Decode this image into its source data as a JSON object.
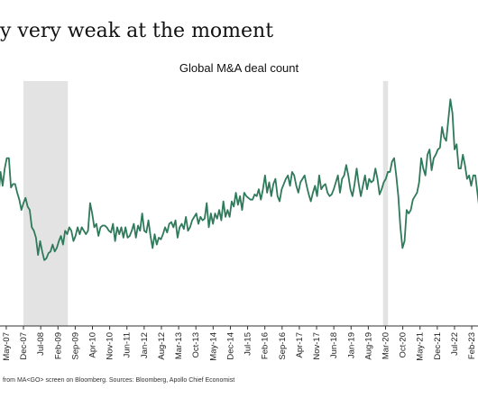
{
  "headline": "y very weak at the moment",
  "footnote": "from MA<GO> screen on Bloomberg. Sources: Bloomberg, Apollo Chief Economist",
  "chart_data": {
    "type": "line",
    "title": "Global M&A deal count",
    "xlabel": "",
    "ylabel": "",
    "line_color": "#2f7a5b",
    "recession_color": "#e3e3e3",
    "tick_labels": [
      "May-07",
      "Dec-07",
      "Jul-08",
      "Feb-09",
      "Sep-09",
      "Apr-10",
      "Nov-10",
      "Jun-11",
      "Jan-12",
      "Aug-12",
      "Mar-13",
      "Oct-13",
      "May-14",
      "Dec-14",
      "Jul-15",
      "Feb-16",
      "Sep-16",
      "Apr-17",
      "Nov-17",
      "Jun-18",
      "Jan-19",
      "Aug-19",
      "Mar-20",
      "Oct-20",
      "May-21",
      "Dec-21",
      "Jul-22",
      "Feb-23"
    ],
    "recessions": [
      {
        "start": "Dec-07",
        "end": "Jun-09"
      },
      {
        "start": "Feb-20",
        "end": "Apr-20"
      }
    ],
    "x_start": "Jan-07",
    "x_end": "Jun-23",
    "y_range": [
      0,
      100
    ],
    "series": [
      {
        "values": [
          55,
          48,
          62,
          54,
          64,
          70,
          70,
          53,
          55,
          55,
          50,
          46,
          40,
          44,
          47,
          42,
          40,
          30,
          28,
          24,
          14,
          22,
          16,
          11,
          12,
          15,
          16,
          20,
          16,
          18,
          22,
          25,
          20,
          28,
          26,
          30,
          28,
          22,
          25,
          30,
          26,
          30,
          28,
          26,
          28,
          44,
          38,
          30,
          32,
          25,
          30,
          31,
          31,
          30,
          28,
          27,
          32,
          22,
          30,
          26,
          30,
          24,
          30,
          24,
          25,
          28,
          32,
          24,
          31,
          28,
          38,
          28,
          27,
          34,
          25,
          18,
          26,
          20,
          24,
          23,
          26,
          30,
          27,
          32,
          33,
          30,
          34,
          24,
          30,
          32,
          29,
          36,
          28,
          30,
          34,
          36,
          38,
          32,
          36,
          34,
          35,
          44,
          30,
          38,
          32,
          38,
          35,
          40,
          34,
          45,
          36,
          40,
          36,
          45,
          42,
          50,
          43,
          48,
          40,
          50,
          48,
          47,
          46,
          46,
          49,
          48,
          52,
          46,
          52,
          60,
          50,
          56,
          48,
          55,
          58,
          48,
          45,
          52,
          55,
          58,
          60,
          54,
          62,
          60,
          54,
          50,
          56,
          58,
          60,
          54,
          49,
          45,
          50,
          54,
          48,
          60,
          52,
          54,
          55,
          50,
          48,
          49,
          52,
          56,
          60,
          50,
          58,
          60,
          66,
          60,
          52,
          48,
          55,
          64,
          55,
          48,
          54,
          60,
          52,
          58,
          56,
          57,
          64,
          58,
          49,
          52,
          56,
          58,
          62,
          62,
          68,
          70,
          60,
          48,
          30,
          18,
          22,
          40,
          38,
          40,
          46,
          48,
          50,
          56,
          70,
          64,
          60,
          72,
          75,
          63,
          70,
          72,
          75,
          76,
          88,
          82,
          80,
          92,
          104,
          96,
          75,
          78,
          64,
          64,
          72,
          66,
          58,
          60,
          54,
          60,
          60,
          50,
          40,
          46
        ]
      }
    ]
  }
}
